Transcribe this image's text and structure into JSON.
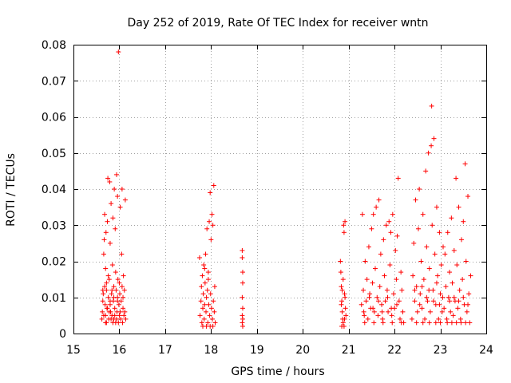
{
  "chart_data": {
    "type": "scatter",
    "title": "Day 252 of 2019, Rate Of TEC Index for receiver wntn",
    "xlabel": "GPS time / hours",
    "ylabel": "ROTI / TECUs",
    "xlim": [
      15,
      24
    ],
    "ylim": [
      0,
      0.08
    ],
    "x_ticks": [
      15,
      16,
      17,
      18,
      19,
      20,
      21,
      22,
      23,
      24
    ],
    "y_ticks": [
      0,
      0.01,
      0.02,
      0.03,
      0.04,
      0.05,
      0.06,
      0.07,
      0.08
    ],
    "x_tick_labels": [
      "15",
      "16",
      "17",
      "18",
      "19",
      "20",
      "21",
      "22",
      "23",
      "24"
    ],
    "y_tick_labels": [
      "0",
      "0.01",
      "0.02",
      "0.03",
      "0.04",
      "0.05",
      "0.06",
      "0.07",
      "0.08"
    ],
    "grid": true,
    "marker": "+",
    "color": "#ff0000",
    "series": [
      {
        "name": "ROTI",
        "points": [
          [
            15.62,
            0.004
          ],
          [
            15.63,
            0.006
          ],
          [
            15.64,
            0.009
          ],
          [
            15.65,
            0.011
          ],
          [
            15.66,
            0.022
          ],
          [
            15.67,
            0.026
          ],
          [
            15.68,
            0.033
          ],
          [
            15.68,
            0.013
          ],
          [
            15.69,
            0.008
          ],
          [
            15.7,
            0.005
          ],
          [
            15.7,
            0.018
          ],
          [
            15.71,
            0.028
          ],
          [
            15.72,
            0.003
          ],
          [
            15.72,
            0.012
          ],
          [
            15.73,
            0.007
          ],
          [
            15.74,
            0.031
          ],
          [
            15.75,
            0.043
          ],
          [
            15.76,
            0.01
          ],
          [
            15.77,
            0.004
          ],
          [
            15.78,
            0.015
          ],
          [
            15.79,
            0.042
          ],
          [
            15.8,
            0.008
          ],
          [
            15.8,
            0.025
          ],
          [
            15.81,
            0.006
          ],
          [
            15.82,
            0.036
          ],
          [
            15.83,
            0.011
          ],
          [
            15.84,
            0.005
          ],
          [
            15.85,
            0.019
          ],
          [
            15.86,
            0.032
          ],
          [
            15.87,
            0.009
          ],
          [
            15.88,
            0.004
          ],
          [
            15.88,
            0.013
          ],
          [
            15.89,
            0.04
          ],
          [
            15.9,
            0.007
          ],
          [
            15.91,
            0.029
          ],
          [
            15.92,
            0.003
          ],
          [
            15.93,
            0.012
          ],
          [
            15.94,
            0.044
          ],
          [
            15.95,
            0.006
          ],
          [
            15.96,
            0.038
          ],
          [
            15.96,
            0.01
          ],
          [
            15.97,
            0.015
          ],
          [
            15.98,
            0.078
          ],
          [
            15.99,
            0.008
          ],
          [
            16.0,
            0.005
          ],
          [
            16.01,
            0.011
          ],
          [
            16.02,
            0.035
          ],
          [
            16.03,
            0.004
          ],
          [
            16.04,
            0.009
          ],
          [
            16.05,
            0.022
          ],
          [
            16.06,
            0.04
          ],
          [
            16.06,
            0.013
          ],
          [
            16.07,
            0.003
          ],
          [
            16.08,
            0.007
          ],
          [
            16.09,
            0.016
          ],
          [
            16.1,
            0.005
          ],
          [
            16.11,
            0.012
          ],
          [
            16.12,
            0.006
          ],
          [
            16.13,
            0.037
          ],
          [
            16.14,
            0.004
          ],
          [
            15.66,
            0.005
          ],
          [
            15.7,
            0.003
          ],
          [
            15.74,
            0.007
          ],
          [
            15.78,
            0.006
          ],
          [
            15.82,
            0.004
          ],
          [
            15.86,
            0.003
          ],
          [
            15.9,
            0.005
          ],
          [
            15.94,
            0.004
          ],
          [
            15.98,
            0.003
          ],
          [
            16.02,
            0.006
          ],
          [
            15.72,
            0.014
          ],
          [
            15.76,
            0.016
          ],
          [
            15.84,
            0.012
          ],
          [
            15.92,
            0.017
          ],
          [
            16.0,
            0.014
          ],
          [
            16.08,
            0.01
          ],
          [
            15.64,
            0.012
          ],
          [
            15.8,
            0.009
          ],
          [
            15.88,
            0.01
          ],
          [
            15.96,
            0.009
          ],
          [
            17.75,
            0.021
          ],
          [
            17.76,
            0.005
          ],
          [
            17.78,
            0.009
          ],
          [
            17.79,
            0.013
          ],
          [
            17.8,
            0.003
          ],
          [
            17.81,
            0.016
          ],
          [
            17.82,
            0.007
          ],
          [
            17.83,
            0.011
          ],
          [
            17.84,
            0.019
          ],
          [
            17.85,
            0.004
          ],
          [
            17.86,
            0.008
          ],
          [
            17.87,
            0.014
          ],
          [
            17.88,
            0.022
          ],
          [
            17.89,
            0.006
          ],
          [
            17.9,
            0.01
          ],
          [
            17.91,
            0.029
          ],
          [
            17.92,
            0.012
          ],
          [
            17.93,
            0.003
          ],
          [
            17.94,
            0.017
          ],
          [
            17.95,
            0.008
          ],
          [
            17.96,
            0.031
          ],
          [
            17.97,
            0.005
          ],
          [
            17.98,
            0.039
          ],
          [
            17.99,
            0.011
          ],
          [
            18.0,
            0.026
          ],
          [
            18.01,
            0.007
          ],
          [
            18.02,
            0.033
          ],
          [
            18.03,
            0.004
          ],
          [
            18.04,
            0.03
          ],
          [
            18.05,
            0.009
          ],
          [
            18.06,
            0.041
          ],
          [
            18.07,
            0.006
          ],
          [
            18.08,
            0.013
          ],
          [
            18.09,
            0.003
          ],
          [
            17.82,
            0.002
          ],
          [
            17.9,
            0.002
          ],
          [
            17.98,
            0.002
          ],
          [
            18.04,
            0.002
          ],
          [
            17.86,
            0.018
          ],
          [
            17.94,
            0.015
          ],
          [
            18.68,
            0.023
          ],
          [
            18.68,
            0.021
          ],
          [
            18.69,
            0.017
          ],
          [
            18.69,
            0.014
          ],
          [
            18.68,
            0.01
          ],
          [
            18.69,
            0.007
          ],
          [
            18.68,
            0.005
          ],
          [
            18.69,
            0.004
          ],
          [
            18.68,
            0.003
          ],
          [
            18.69,
            0.002
          ],
          [
            20.82,
            0.02
          ],
          [
            20.83,
            0.017
          ],
          [
            20.84,
            0.013
          ],
          [
            20.85,
            0.009
          ],
          [
            20.86,
            0.006
          ],
          [
            20.87,
            0.004
          ],
          [
            20.88,
            0.003
          ],
          [
            20.89,
            0.03
          ],
          [
            20.9,
            0.028
          ],
          [
            20.91,
            0.011
          ],
          [
            20.92,
            0.031
          ],
          [
            20.93,
            0.007
          ],
          [
            20.94,
            0.005
          ],
          [
            20.85,
            0.002
          ],
          [
            20.9,
            0.002
          ],
          [
            20.88,
            0.015
          ],
          [
            20.84,
            0.008
          ],
          [
            20.92,
            0.01
          ],
          [
            20.86,
            0.012
          ],
          [
            20.91,
            0.004
          ],
          [
            21.28,
            0.008
          ],
          [
            21.3,
            0.033
          ],
          [
            21.32,
            0.012
          ],
          [
            21.34,
            0.005
          ],
          [
            21.36,
            0.02
          ],
          [
            21.38,
            0.009
          ],
          [
            21.4,
            0.015
          ],
          [
            21.42,
            0.004
          ],
          [
            21.44,
            0.024
          ],
          [
            21.46,
            0.011
          ],
          [
            21.48,
            0.007
          ],
          [
            21.5,
            0.029
          ],
          [
            21.52,
            0.014
          ],
          [
            21.54,
            0.033
          ],
          [
            21.56,
            0.006
          ],
          [
            21.58,
            0.018
          ],
          [
            21.6,
            0.035
          ],
          [
            21.62,
            0.01
          ],
          [
            21.64,
            0.005
          ],
          [
            21.66,
            0.037
          ],
          [
            21.68,
            0.013
          ],
          [
            21.7,
            0.022
          ],
          [
            21.72,
            0.008
          ],
          [
            21.74,
            0.004
          ],
          [
            21.76,
            0.026
          ],
          [
            21.78,
            0.016
          ],
          [
            21.8,
            0.009
          ],
          [
            21.82,
            0.03
          ],
          [
            21.84,
            0.012
          ],
          [
            21.86,
            0.006
          ],
          [
            21.88,
            0.031
          ],
          [
            21.9,
            0.019
          ],
          [
            21.92,
            0.028
          ],
          [
            21.94,
            0.005
          ],
          [
            21.96,
            0.033
          ],
          [
            21.98,
            0.011
          ],
          [
            22.0,
            0.007
          ],
          [
            22.02,
            0.023
          ],
          [
            22.04,
            0.015
          ],
          [
            22.06,
            0.027
          ],
          [
            22.08,
            0.043
          ],
          [
            22.1,
            0.009
          ],
          [
            22.12,
            0.004
          ],
          [
            22.14,
            0.017
          ],
          [
            22.16,
            0.012
          ],
          [
            22.18,
            0.006
          ],
          [
            22.2,
            0.003
          ],
          [
            21.35,
            0.003
          ],
          [
            21.55,
            0.003
          ],
          [
            21.75,
            0.003
          ],
          [
            21.95,
            0.003
          ],
          [
            22.15,
            0.003
          ],
          [
            21.45,
            0.01
          ],
          [
            21.65,
            0.009
          ],
          [
            21.85,
            0.01
          ],
          [
            22.05,
            0.008
          ],
          [
            21.33,
            0.006
          ],
          [
            21.53,
            0.007
          ],
          [
            21.73,
            0.006
          ],
          [
            21.93,
            0.007
          ],
          [
            22.38,
            0.004
          ],
          [
            22.4,
            0.016
          ],
          [
            22.42,
            0.025
          ],
          [
            22.44,
            0.009
          ],
          [
            22.46,
            0.037
          ],
          [
            22.48,
            0.013
          ],
          [
            22.5,
            0.006
          ],
          [
            22.52,
            0.029
          ],
          [
            22.54,
            0.04
          ],
          [
            22.56,
            0.011
          ],
          [
            22.58,
            0.02
          ],
          [
            22.6,
            0.007
          ],
          [
            22.62,
            0.033
          ],
          [
            22.64,
            0.015
          ],
          [
            22.66,
            0.004
          ],
          [
            22.68,
            0.045
          ],
          [
            22.7,
            0.024
          ],
          [
            22.72,
            0.009
          ],
          [
            22.74,
            0.05
          ],
          [
            22.76,
            0.018
          ],
          [
            22.78,
            0.006
          ],
          [
            22.8,
            0.052
          ],
          [
            22.81,
            0.063
          ],
          [
            22.82,
            0.03
          ],
          [
            22.84,
            0.012
          ],
          [
            22.86,
            0.054
          ],
          [
            22.88,
            0.022
          ],
          [
            22.9,
            0.008
          ],
          [
            22.92,
            0.035
          ],
          [
            22.94,
            0.016
          ],
          [
            22.96,
            0.004
          ],
          [
            22.98,
            0.028
          ],
          [
            23.0,
            0.011
          ],
          [
            23.02,
            0.019
          ],
          [
            23.04,
            0.006
          ],
          [
            23.06,
            0.024
          ],
          [
            22.48,
            0.003
          ],
          [
            22.62,
            0.003
          ],
          [
            22.76,
            0.003
          ],
          [
            22.9,
            0.003
          ],
          [
            23.0,
            0.003
          ],
          [
            22.55,
            0.008
          ],
          [
            22.7,
            0.01
          ],
          [
            22.85,
            0.009
          ],
          [
            22.98,
            0.008
          ],
          [
            22.44,
            0.012
          ],
          [
            22.6,
            0.013
          ],
          [
            22.75,
            0.012
          ],
          [
            22.92,
            0.014
          ],
          [
            23.05,
            0.01
          ],
          [
            23.08,
            0.007
          ],
          [
            23.1,
            0.022
          ],
          [
            23.12,
            0.013
          ],
          [
            23.14,
            0.004
          ],
          [
            23.16,
            0.028
          ],
          [
            23.18,
            0.01
          ],
          [
            23.2,
            0.017
          ],
          [
            23.22,
            0.006
          ],
          [
            23.24,
            0.032
          ],
          [
            23.26,
            0.014
          ],
          [
            23.28,
            0.005
          ],
          [
            23.3,
            0.023
          ],
          [
            23.32,
            0.009
          ],
          [
            23.34,
            0.043
          ],
          [
            23.36,
            0.019
          ],
          [
            23.38,
            0.007
          ],
          [
            23.4,
            0.035
          ],
          [
            23.42,
            0.012
          ],
          [
            23.44,
            0.004
          ],
          [
            23.46,
            0.026
          ],
          [
            23.48,
            0.015
          ],
          [
            23.5,
            0.031
          ],
          [
            23.52,
            0.008
          ],
          [
            23.54,
            0.047
          ],
          [
            23.56,
            0.02
          ],
          [
            23.58,
            0.006
          ],
          [
            23.6,
            0.038
          ],
          [
            23.62,
            0.011
          ],
          [
            23.64,
            0.003
          ],
          [
            23.66,
            0.016
          ],
          [
            23.15,
            0.003
          ],
          [
            23.25,
            0.003
          ],
          [
            23.35,
            0.003
          ],
          [
            23.45,
            0.003
          ],
          [
            23.55,
            0.003
          ],
          [
            23.2,
            0.009
          ],
          [
            23.3,
            0.01
          ],
          [
            23.4,
            0.009
          ],
          [
            23.5,
            0.01
          ],
          [
            23.6,
            0.008
          ]
        ]
      }
    ]
  }
}
